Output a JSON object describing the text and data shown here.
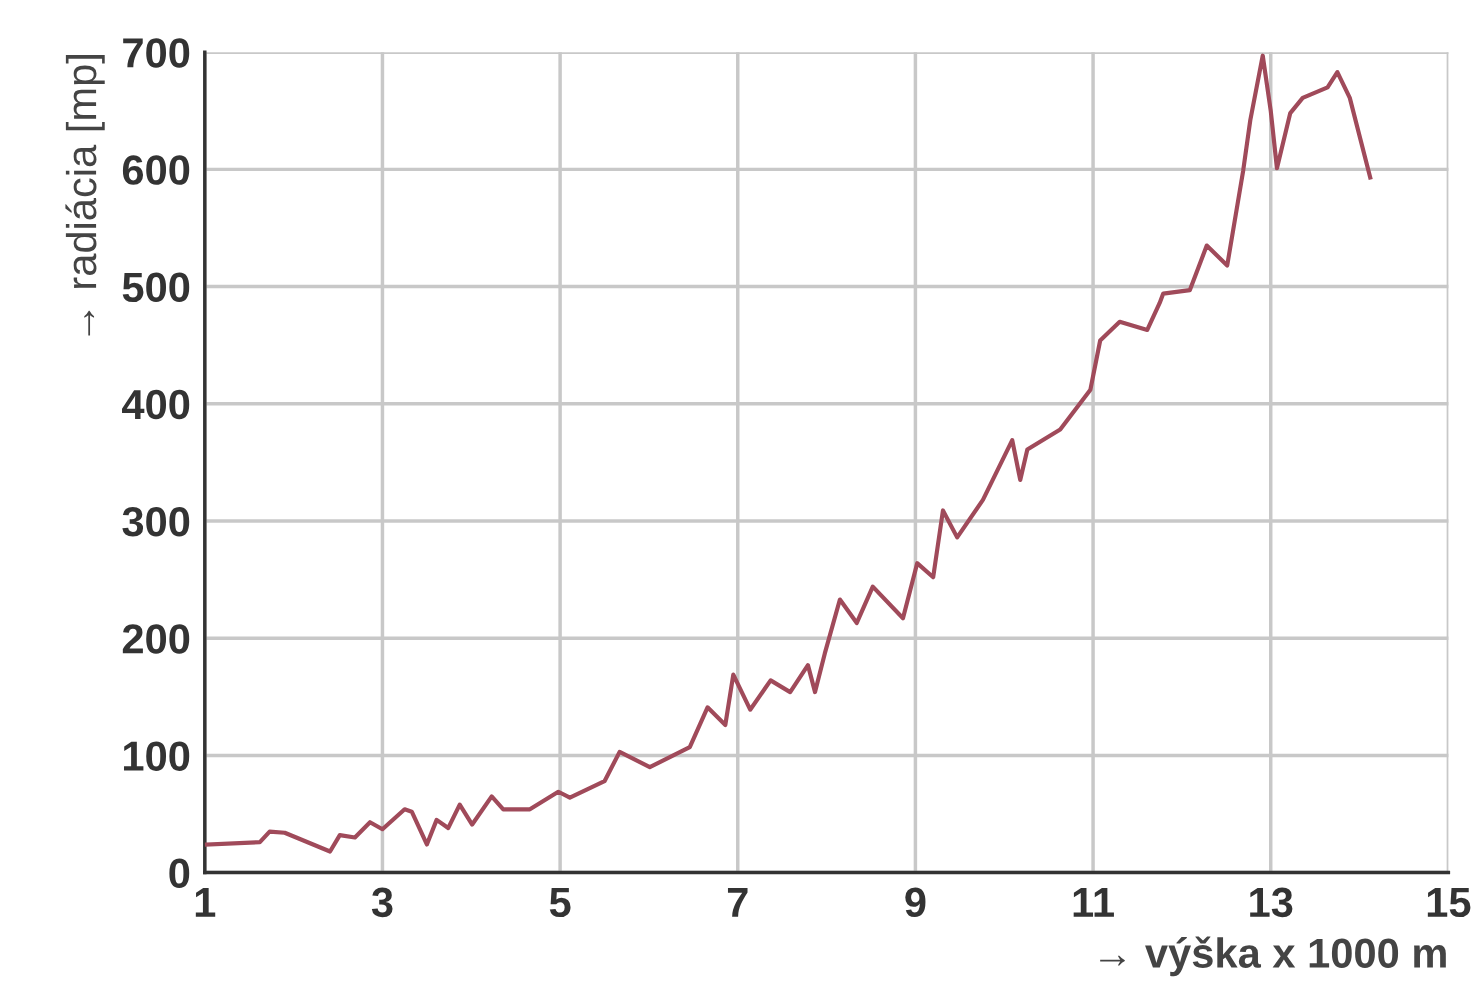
{
  "chart_data": {
    "type": "line",
    "xlabel": "→ výška x 1000 m",
    "ylabel": "→ radiácia [mp]",
    "xlim": [
      1,
      15
    ],
    "xticks": [
      1,
      3,
      5,
      7,
      9,
      11,
      13,
      15
    ],
    "ylim": [
      0,
      700
    ],
    "yticks": [
      0,
      100,
      200,
      300,
      400,
      500,
      600,
      700
    ],
    "grid": true,
    "series": [
      {
        "color": "#a04a5a",
        "x": [
          1.02,
          1.62,
          1.73,
          1.9,
          2.41,
          2.52,
          2.69,
          2.86,
          3.0,
          3.25,
          3.33,
          3.5,
          3.61,
          3.74,
          3.87,
          4.01,
          4.23,
          4.36,
          4.66,
          4.98,
          5.11,
          5.5,
          5.67,
          6.01,
          6.46,
          6.66,
          6.86,
          6.95,
          7.14,
          7.37,
          7.59,
          7.79,
          7.87,
          7.98,
          8.15,
          8.34,
          8.52,
          8.86,
          9.02,
          9.2,
          9.31,
          9.47,
          9.76,
          10.09,
          10.18,
          10.26,
          10.63,
          10.97,
          11.08,
          11.3,
          11.61,
          11.75,
          11.79,
          12.09,
          12.28,
          12.51,
          12.69,
          12.77,
          12.91,
          13.0,
          13.07,
          13.22,
          13.36,
          13.64,
          13.75,
          13.89,
          14.12
        ],
        "values": [
          24,
          26,
          35,
          34,
          18,
          32,
          30,
          43,
          37,
          54,
          52,
          24,
          45,
          38,
          58,
          41,
          65,
          54,
          54,
          69,
          64,
          78,
          103,
          90,
          107,
          141,
          126,
          169,
          139,
          164,
          154,
          177,
          154,
          187,
          233,
          213,
          244,
          217,
          264,
          252,
          309,
          286,
          318,
          369,
          335,
          361,
          378,
          412,
          454,
          470,
          463,
          486,
          494,
          497,
          535,
          518,
          599,
          642,
          697,
          650,
          601,
          648,
          661,
          670,
          683,
          661,
          593
        ]
      }
    ]
  }
}
